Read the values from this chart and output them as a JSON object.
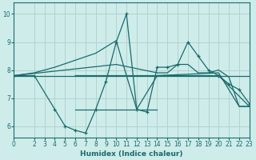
{
  "xlabel": "Humidex (Indice chaleur)",
  "bg_color": "#ceecea",
  "grid_color": "#b0d4d0",
  "line_color": "#1a6b6b",
  "x_ticks": [
    0,
    2,
    3,
    4,
    5,
    6,
    7,
    8,
    9,
    10,
    11,
    12,
    13,
    14,
    15,
    16,
    17,
    18,
    19,
    20,
    21,
    22,
    23
  ],
  "y_ticks": [
    6,
    7,
    8,
    9,
    10
  ],
  "xlim": [
    0,
    23
  ],
  "ylim": [
    5.6,
    10.4
  ],
  "lines": [
    {
      "x": [
        0,
        2,
        4,
        5,
        6,
        7,
        8,
        9,
        10,
        11,
        12,
        13,
        14,
        15,
        16,
        17,
        18,
        19,
        20,
        21,
        22,
        23
      ],
      "y": [
        7.8,
        7.8,
        6.6,
        6.0,
        5.85,
        5.75,
        6.6,
        7.6,
        9.0,
        10.0,
        6.6,
        6.5,
        8.1,
        8.1,
        8.2,
        9.0,
        8.5,
        8.0,
        7.8,
        7.5,
        7.3,
        6.8
      ],
      "marker": "+"
    },
    {
      "x": [
        0,
        23
      ],
      "y": [
        7.8,
        7.8
      ],
      "marker": null
    },
    {
      "x": [
        0,
        10,
        14,
        15,
        16,
        17,
        18,
        19,
        20,
        21,
        22,
        23
      ],
      "y": [
        7.8,
        8.2,
        7.9,
        7.9,
        8.2,
        8.2,
        7.9,
        7.9,
        8.0,
        7.75,
        6.7,
        6.7
      ],
      "marker": null
    },
    {
      "x": [
        0,
        2,
        4,
        6,
        8,
        10,
        11,
        12,
        14,
        20,
        22,
        23
      ],
      "y": [
        7.8,
        7.9,
        8.1,
        8.35,
        8.6,
        9.05,
        7.8,
        6.6,
        7.8,
        7.9,
        6.7,
        6.7
      ],
      "marker": null
    },
    {
      "x": [
        6,
        14
      ],
      "y": [
        6.6,
        6.6
      ],
      "marker": null
    },
    {
      "x": [
        6,
        11,
        14,
        20,
        23
      ],
      "y": [
        7.8,
        7.8,
        7.8,
        7.8,
        6.7
      ],
      "marker": null
    }
  ]
}
